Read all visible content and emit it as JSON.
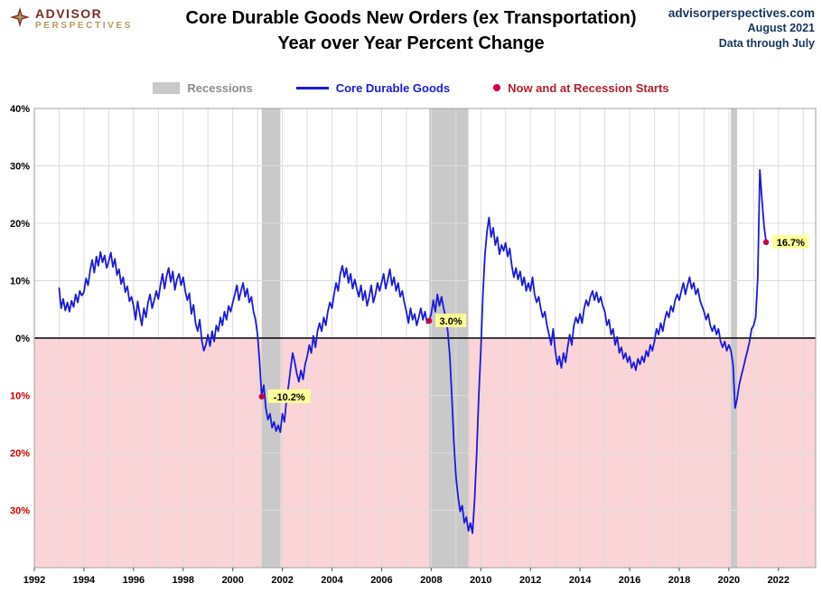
{
  "header": {
    "logo": {
      "line1": "ADVISOR",
      "line2": "PERSPECTIVES"
    },
    "title_line1": "Core Durable Goods New Orders (ex Transportation)",
    "title_line2": "Year over Year Percent Change",
    "source": "advisorperspectives.com",
    "date": "August 2021",
    "through": "Data through July"
  },
  "legend": [
    {
      "type": "band",
      "label": "Recessions",
      "color": "#c9c9c9",
      "text_color": "#8c8c8c"
    },
    {
      "type": "line",
      "label": "Core Durable Goods",
      "color": "#1a1adc",
      "text_color": "#1a1adc"
    },
    {
      "type": "dot",
      "label": "Now and at Recession Starts",
      "color": "#cc0044",
      "text_color": "#b02030"
    }
  ],
  "chart_data": {
    "type": "line",
    "title": "Core Durable Goods New Orders (ex Transportation) Year over Year Percent Change",
    "xlabel": "",
    "ylabel": "",
    "series_name": "Core Durable Goods",
    "x_start": 1993.0,
    "frequency_per_year": 12,
    "xlim": [
      1992,
      2023.5
    ],
    "ylim": [
      -40,
      40
    ],
    "x_ticks": [
      1992,
      1994,
      1996,
      1998,
      2000,
      2002,
      2004,
      2006,
      2008,
      2010,
      2012,
      2014,
      2016,
      2018,
      2020,
      2022
    ],
    "y_ticks": [
      {
        "value": 40,
        "label": "40%"
      },
      {
        "value": 30,
        "label": "30%"
      },
      {
        "value": 20,
        "label": "20%"
      },
      {
        "value": 10,
        "label": "10%"
      },
      {
        "value": 0,
        "label": "0%"
      },
      {
        "value": -10,
        "label": "10%"
      },
      {
        "value": -20,
        "label": "20%"
      },
      {
        "value": -30,
        "label": "30%"
      }
    ],
    "grid": true,
    "legend_position": "top",
    "recessions": [
      [
        2001.17,
        2001.92
      ],
      [
        2007.92,
        2009.5
      ],
      [
        2020.08,
        2020.33
      ]
    ],
    "annotations": [
      {
        "x": 2001.167,
        "y": -10.2,
        "label": "-10.2%"
      },
      {
        "x": 2007.917,
        "y": 3.0,
        "label": "3.0%"
      },
      {
        "x": 2021.5,
        "y": 16.7,
        "label": "16.7%"
      }
    ],
    "values": [
      8.7,
      5.2,
      6.8,
      4.8,
      6.2,
      4.6,
      6.5,
      5.4,
      7.6,
      6.2,
      8.2,
      7.4,
      8.0,
      10.4,
      9.2,
      11.8,
      13.6,
      11.4,
      14.2,
      12.6,
      15.0,
      13.2,
      14.4,
      12.2,
      13.4,
      14.9,
      12.4,
      13.8,
      11.0,
      12.0,
      9.4,
      10.6,
      8.0,
      9.0,
      6.4,
      7.2,
      5.6,
      3.2,
      6.4,
      4.2,
      2.2,
      5.2,
      3.6,
      6.2,
      7.6,
      5.2,
      6.6,
      8.2,
      6.8,
      9.2,
      11.2,
      8.6,
      10.8,
      12.2,
      9.8,
      11.6,
      8.4,
      10.2,
      11.2,
      9.2,
      10.6,
      8.2,
      6.6,
      7.8,
      4.2,
      5.8,
      2.6,
      1.2,
      3.2,
      -0.4,
      -2.2,
      -1.2,
      0.6,
      -1.4,
      1.2,
      -0.6,
      2.2,
      1.2,
      3.6,
      2.2,
      4.6,
      3.2,
      5.6,
      4.6,
      6.2,
      7.6,
      9.2,
      6.6,
      8.2,
      9.6,
      7.2,
      8.6,
      6.2,
      7.2,
      4.6,
      3.2,
      0.6,
      -4.2,
      -10.2,
      -8.2,
      -12.2,
      -14.2,
      -13.2,
      -15.6,
      -14.6,
      -16.2,
      -15.2,
      -16.4,
      -13.2,
      -14.6,
      -10.6,
      -8.2,
      -5.2,
      -2.6,
      -4.2,
      -6.2,
      -7.6,
      -5.6,
      -7.2,
      -4.6,
      -3.2,
      -1.2,
      -2.6,
      0.4,
      -1.6,
      1.2,
      2.6,
      1.2,
      3.6,
      2.2,
      4.6,
      6.2,
      5.2,
      7.6,
      9.6,
      8.2,
      11.2,
      12.6,
      10.6,
      12.2,
      9.6,
      11.2,
      8.6,
      10.2,
      8.6,
      7.2,
      9.2,
      6.6,
      8.2,
      5.6,
      7.2,
      9.2,
      6.2,
      7.6,
      9.6,
      8.2,
      9.6,
      11.2,
      8.6,
      10.2,
      12.0,
      9.2,
      10.6,
      8.2,
      9.6,
      7.2,
      8.2,
      6.2,
      4.6,
      2.6,
      5.2,
      3.2,
      4.2,
      2.2,
      3.6,
      5.2,
      3.2,
      4.6,
      2.6,
      3.0,
      4.2,
      6.6,
      4.6,
      7.6,
      5.6,
      7.2,
      5.2,
      3.6,
      1.2,
      -3.2,
      -10.2,
      -18.2,
      -24.2,
      -27.6,
      -30.2,
      -29.2,
      -32.2,
      -31.2,
      -33.6,
      -32.2,
      -34.0,
      -28.2,
      -20.2,
      -10.2,
      -2.2,
      7.6,
      14.6,
      18.6,
      21.0,
      17.6,
      19.2,
      16.2,
      17.6,
      14.6,
      16.2,
      15.2,
      16.6,
      14.2,
      15.6,
      12.6,
      10.6,
      12.2,
      10.2,
      11.6,
      9.2,
      10.6,
      8.2,
      9.6,
      8.2,
      10.6,
      7.6,
      6.2,
      7.2,
      5.2,
      3.6,
      4.6,
      2.2,
      0.6,
      -1.2,
      1.6,
      -2.2,
      -4.6,
      -3.2,
      -5.2,
      -2.6,
      -4.2,
      -1.6,
      0.6,
      -1.2,
      2.2,
      3.6,
      2.6,
      4.2,
      2.6,
      5.2,
      6.6,
      5.6,
      7.2,
      8.2,
      6.6,
      8.0,
      6.2,
      7.2,
      5.6,
      4.6,
      2.2,
      3.2,
      0.6,
      1.6,
      -1.2,
      0.2,
      -2.6,
      -1.6,
      -3.6,
      -2.6,
      -4.2,
      -3.2,
      -5.2,
      -4.2,
      -5.6,
      -3.6,
      -4.6,
      -3.2,
      -4.2,
      -2.2,
      -3.2,
      -1.2,
      -2.2,
      -0.6,
      1.6,
      0.6,
      2.6,
      1.2,
      3.2,
      4.6,
      3.6,
      5.6,
      4.6,
      6.6,
      7.6,
      6.6,
      8.2,
      9.6,
      7.6,
      9.2,
      10.6,
      8.6,
      9.6,
      7.6,
      8.6,
      6.6,
      5.6,
      4.6,
      3.2,
      4.2,
      2.2,
      1.2,
      2.2,
      0.6,
      1.6,
      -0.6,
      -1.6,
      -0.6,
      -2.2,
      -1.2,
      -2.2,
      -4.6,
      -12.2,
      -10.6,
      -8.2,
      -6.6,
      -5.2,
      -3.6,
      -2.2,
      -0.6,
      1.6,
      2.2,
      3.6,
      10.6,
      29.3,
      24.2,
      19.6,
      16.7
    ],
    "colors": {
      "line": "#1a1adc",
      "dot": "#cc0044",
      "negative_fill": "#fad4d6",
      "recession_band": "#c9c9c9",
      "grid": "#dcdcdc",
      "border": "#a0a0a0",
      "zero_line": "#000000",
      "neg_tick": "#cc0000",
      "annotation_bg": "#ffff99"
    }
  }
}
